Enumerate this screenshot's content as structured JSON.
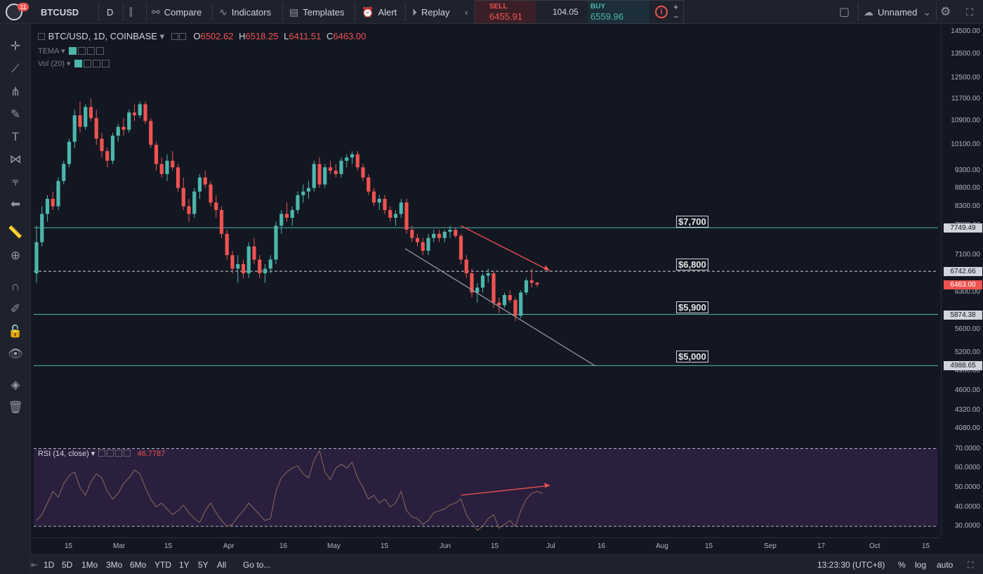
{
  "topbar": {
    "notification_count": "11",
    "symbol": "BTCUSD",
    "interval": "D",
    "compare": "Compare",
    "indicators": "Indicators",
    "templates": "Templates",
    "alert": "Alert",
    "replay": "Replay",
    "layout_name": "Unnamed"
  },
  "trade": {
    "sell_label": "SELL",
    "sell_price": "6455.91",
    "spread": "104.05",
    "buy_label": "BUY",
    "buy_price": "6559.96",
    "plus": "+",
    "minus": "−"
  },
  "legend": {
    "title": "BTC/USD, 1D, COINBASE",
    "open_label": "O",
    "open": "6502.62",
    "high_label": "H",
    "high": "6518.25",
    "low_label": "L",
    "low": "6411.51",
    "close_label": "C",
    "close": "6463.00",
    "ind1": "TEMA",
    "ind2": "Vol (20)"
  },
  "rsi": {
    "label": "RSI (14, close)",
    "value": "46.7787",
    "axis": [
      "70.0000",
      "60.0000",
      "50.0000",
      "40.0000",
      "30.0000"
    ]
  },
  "price_axis": {
    "ticks": [
      "14500.00",
      "13500.00",
      "12500.00",
      "11700.00",
      "10900.00",
      "10100.00",
      "9300.00",
      "8800.00",
      "8300.00",
      "7800.00",
      "7100.00",
      "6300.00",
      "5600.00",
      "5200.00",
      "4900.00",
      "4600.00",
      "4320.00",
      "4080.00"
    ],
    "tag_7749": "7749.49",
    "tag_6742": "6742.66",
    "tag_6463": "6463.00",
    "tag_5874": "5874.38",
    "tag_4988": "4988.65"
  },
  "annotations": [
    "$7,700",
    "$6,800",
    "$5,900",
    "$5,000"
  ],
  "time_axis": [
    "15",
    "Mar",
    "15",
    "Apr",
    "16",
    "May",
    "15",
    "Jun",
    "15",
    "Jul",
    "16",
    "Aug",
    "15",
    "Sep",
    "17",
    "Oct",
    "15"
  ],
  "bottombar": {
    "ranges": [
      "1D",
      "5D",
      "1Mo",
      "3Mo",
      "6Mo",
      "YTD",
      "1Y",
      "5Y",
      "All"
    ],
    "goto": "Go to...",
    "time": "13:23:30 (UTC+8)",
    "percent": "%",
    "log": "log",
    "auto": "auto"
  },
  "colors": {
    "up": "#4db6ac",
    "down": "#ef5350",
    "bg": "#131722",
    "rsi_bg": "#2a1f3d"
  },
  "chart_data": {
    "type": "candlestick",
    "title": "BTC/USD, 1D, COINBASE",
    "scale": "log",
    "ylim": [
      3900,
      14800
    ],
    "candles": [
      [
        6700,
        7800,
        6500,
        7400
      ],
      [
        7400,
        8300,
        7300,
        8100
      ],
      [
        8100,
        8600,
        7900,
        8500
      ],
      [
        8500,
        8700,
        8200,
        8300
      ],
      [
        8300,
        9100,
        8200,
        9000
      ],
      [
        9000,
        9600,
        8900,
        9500
      ],
      [
        9500,
        10300,
        9400,
        10200
      ],
      [
        10200,
        11300,
        10000,
        11100
      ],
      [
        11100,
        11600,
        10500,
        10700
      ],
      [
        10700,
        11500,
        10600,
        11400
      ],
      [
        11400,
        11700,
        10900,
        11000
      ],
      [
        11000,
        11300,
        10100,
        10300
      ],
      [
        10300,
        10500,
        9700,
        9900
      ],
      [
        9900,
        10000,
        9400,
        9600
      ],
      [
        9600,
        10500,
        9500,
        10400
      ],
      [
        10400,
        10800,
        10200,
        10700
      ],
      [
        10700,
        11000,
        10400,
        10600
      ],
      [
        10600,
        11300,
        10500,
        11200
      ],
      [
        11200,
        11500,
        10900,
        11100
      ],
      [
        11100,
        11600,
        11000,
        11500
      ],
      [
        11500,
        11600,
        10800,
        10900
      ],
      [
        10900,
        11000,
        10000,
        10100
      ],
      [
        10100,
        10200,
        9300,
        9500
      ],
      [
        9500,
        9700,
        9100,
        9200
      ],
      [
        9200,
        9800,
        9000,
        9600
      ],
      [
        9600,
        9900,
        9300,
        9400
      ],
      [
        9400,
        9500,
        8700,
        8800
      ],
      [
        8800,
        9100,
        8200,
        8300
      ],
      [
        8300,
        8500,
        7900,
        8100
      ],
      [
        8100,
        8800,
        8000,
        8700
      ],
      [
        8700,
        9200,
        8500,
        9100
      ],
      [
        9100,
        9300,
        8800,
        8900
      ],
      [
        8900,
        9000,
        8300,
        8400
      ],
      [
        8400,
        8600,
        8000,
        8200
      ],
      [
        8200,
        8300,
        7500,
        7600
      ],
      [
        7600,
        7700,
        7000,
        7100
      ],
      [
        7100,
        7200,
        6700,
        6800
      ],
      [
        6800,
        7100,
        6500,
        6900
      ],
      [
        6900,
        7000,
        6600,
        6700
      ],
      [
        6700,
        7400,
        6600,
        7300
      ],
      [
        7300,
        7500,
        6900,
        7000
      ],
      [
        7000,
        7100,
        6600,
        6700
      ],
      [
        6700,
        6900,
        6500,
        6800
      ],
      [
        6800,
        7100,
        6700,
        7000
      ],
      [
        7000,
        7900,
        6900,
        7800
      ],
      [
        7800,
        8200,
        7600,
        8100
      ],
      [
        8100,
        8400,
        7900,
        8000
      ],
      [
        8000,
        8300,
        7800,
        8200
      ],
      [
        8200,
        8700,
        8100,
        8600
      ],
      [
        8600,
        8900,
        8400,
        8700
      ],
      [
        8700,
        9000,
        8500,
        8800
      ],
      [
        8800,
        9600,
        8700,
        9500
      ],
      [
        9500,
        9700,
        8800,
        8900
      ],
      [
        8900,
        9500,
        8800,
        9400
      ],
      [
        9400,
        9600,
        9200,
        9300
      ],
      [
        9300,
        9500,
        9100,
        9200
      ],
      [
        9200,
        9700,
        9100,
        9600
      ],
      [
        9600,
        9800,
        9400,
        9700
      ],
      [
        9700,
        9900,
        9500,
        9800
      ],
      [
        9800,
        9900,
        9300,
        9400
      ],
      [
        9400,
        9500,
        9000,
        9100
      ],
      [
        9100,
        9200,
        8600,
        8700
      ],
      [
        8700,
        8800,
        8300,
        8400
      ],
      [
        8400,
        8600,
        8200,
        8500
      ],
      [
        8500,
        8600,
        8100,
        8200
      ],
      [
        8200,
        8300,
        7900,
        8000
      ],
      [
        8000,
        8200,
        7800,
        8100
      ],
      [
        8100,
        8500,
        8000,
        8400
      ],
      [
        8400,
        8500,
        7600,
        7700
      ],
      [
        7700,
        7800,
        7400,
        7500
      ],
      [
        7500,
        7600,
        7300,
        7400
      ],
      [
        7400,
        7500,
        7100,
        7200
      ],
      [
        7200,
        7600,
        7100,
        7500
      ],
      [
        7500,
        7700,
        7400,
        7600
      ],
      [
        7600,
        7700,
        7400,
        7500
      ],
      [
        7500,
        7700,
        7400,
        7650
      ],
      [
        7650,
        7800,
        7500,
        7700
      ],
      [
        7700,
        7750,
        7500,
        7550
      ],
      [
        7550,
        7600,
        6900,
        7000
      ],
      [
        7000,
        7100,
        6600,
        6700
      ],
      [
        6700,
        6800,
        6200,
        6300
      ],
      [
        6300,
        6500,
        6100,
        6400
      ],
      [
        6400,
        6700,
        6300,
        6650
      ],
      [
        6650,
        6800,
        6500,
        6700
      ],
      [
        6700,
        6750,
        6000,
        6100
      ],
      [
        6100,
        6200,
        5900,
        6050
      ],
      [
        6050,
        6300,
        6000,
        6250
      ],
      [
        6250,
        6350,
        6100,
        6150
      ],
      [
        6150,
        6200,
        5750,
        5850
      ],
      [
        5850,
        6350,
        5800,
        6300
      ],
      [
        6300,
        6600,
        6250,
        6550
      ],
      [
        6550,
        6800,
        6400,
        6500
      ],
      [
        6500,
        6520,
        6410,
        6463
      ]
    ],
    "levels": [
      7749.49,
      6742.66,
      5874.38,
      4988.65
    ],
    "rsi_ylim": [
      25,
      72
    ],
    "rsi": [
      33,
      36,
      42,
      48,
      45,
      52,
      56,
      58,
      50,
      46,
      53,
      57,
      55,
      48,
      44,
      47,
      52,
      55,
      59,
      57,
      50,
      44,
      40,
      42,
      39,
      36,
      38,
      41,
      37,
      34,
      32,
      38,
      42,
      37,
      33,
      30,
      31,
      35,
      38,
      42,
      39,
      36,
      33,
      34,
      48,
      55,
      58,
      60,
      61,
      57,
      55,
      64,
      69,
      58,
      54,
      60,
      62,
      60,
      63,
      55,
      50,
      44,
      46,
      42,
      44,
      40,
      42,
      48,
      38,
      35,
      34,
      31,
      33,
      37,
      38,
      39,
      41,
      42,
      44,
      36,
      32,
      28,
      30,
      34,
      36,
      29,
      31,
      33,
      30,
      38,
      44,
      47,
      48,
      47
    ]
  }
}
